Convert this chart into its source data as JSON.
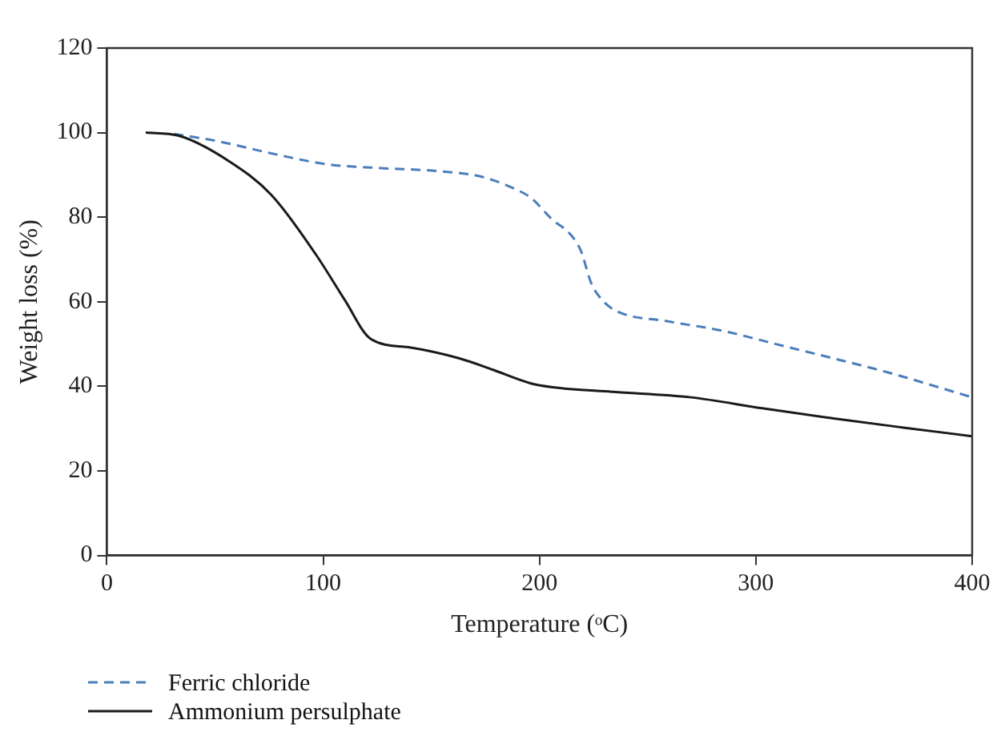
{
  "chart_data": {
    "type": "line",
    "xlabel": "Temperature (ᵒC)",
    "ylabel": "Weight loss (%)",
    "xlim": [
      0,
      400
    ],
    "xticks": [
      0,
      100,
      200,
      300,
      400
    ],
    "ylim": [
      0,
      120
    ],
    "yticks": [
      0,
      20,
      40,
      60,
      80,
      100,
      120
    ],
    "grid": false,
    "legend": "bottom left",
    "marker": "none",
    "series": [
      {
        "name": "Ferric chloride",
        "color": "#4a7ebb",
        "line_style": "dashed",
        "x": [
          31,
          51,
          76,
          102,
          127,
          153,
          173,
          189,
          196,
          206,
          214,
          219,
          224,
          229,
          236,
          259,
          285,
          310,
          336,
          361,
          387,
          400
        ],
        "values": [
          99.7,
          98,
          95.1,
          92.5,
          91.6,
          90.9,
          89.6,
          86.6,
          84.6,
          79.4,
          76.1,
          72.2,
          64.3,
          60.4,
          57.7,
          55.4,
          53.1,
          49.9,
          46.6,
          43.3,
          39.4,
          37.4
        ]
      },
      {
        "name": "Ammonium persulphate",
        "color": "#1a1a1a",
        "line_style": "solid",
        "x": [
          18,
          33,
          56,
          76,
          97,
          110,
          122,
          140,
          163,
          178,
          196,
          206,
          234,
          270,
          303,
          336,
          369,
          400
        ],
        "values": [
          100,
          99.3,
          93.4,
          85.3,
          70.9,
          60.4,
          51.2,
          49.2,
          46.6,
          44,
          40.7,
          39.8,
          38.7,
          37.4,
          34.8,
          32.4,
          30.2,
          28.2
        ]
      }
    ]
  }
}
